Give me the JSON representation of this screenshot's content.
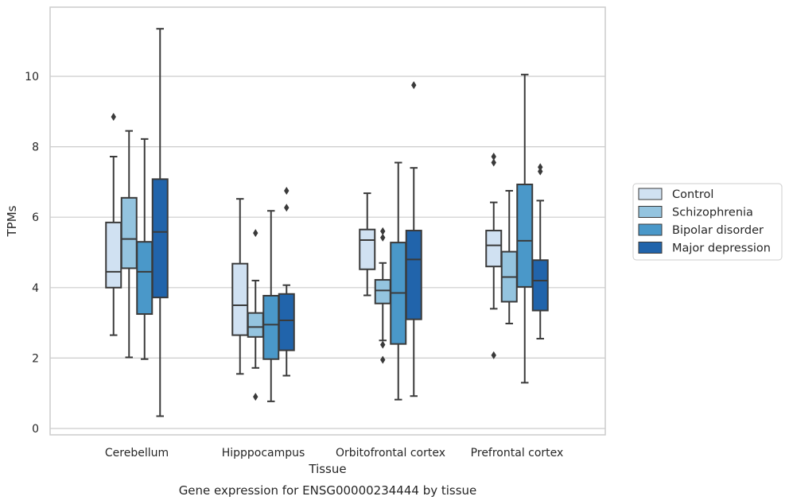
{
  "chart_data": {
    "type": "box",
    "categories": [
      "Cerebellum",
      "Hipppocampus",
      "Orbitofrontal cortex",
      "Prefrontal cortex"
    ],
    "xlabel": "Tissue",
    "ylabel": "TPMs",
    "caption": "Gene expression for ENSG00000234444 by tissue",
    "ylim": [
      -0.2,
      11.8
    ],
    "yticks": [
      0,
      2,
      4,
      6,
      8,
      10
    ],
    "grid": "horizontal",
    "legend_position": "outside right",
    "series": [
      {
        "name": "Control",
        "color": "#d0e1f2",
        "boxes": [
          {
            "whislo": 2.65,
            "q1": 4.0,
            "med": 4.45,
            "q3": 5.85,
            "whishi": 7.72,
            "fliers": [
              8.85
            ]
          },
          {
            "whislo": 1.55,
            "q1": 2.65,
            "med": 3.5,
            "q3": 4.68,
            "whishi": 6.52,
            "fliers": []
          },
          {
            "whislo": 3.78,
            "q1": 4.52,
            "med": 5.35,
            "q3": 5.65,
            "whishi": 6.68,
            "fliers": []
          },
          {
            "whislo": 3.4,
            "q1": 4.6,
            "med": 5.2,
            "q3": 5.62,
            "whishi": 6.42,
            "fliers": [
              7.72,
              7.55,
              2.08
            ]
          }
        ]
      },
      {
        "name": "Schizophrenia",
        "color": "#94c4df",
        "boxes": [
          {
            "whislo": 2.02,
            "q1": 4.55,
            "med": 5.38,
            "q3": 6.55,
            "whishi": 8.45,
            "fliers": []
          },
          {
            "whislo": 1.72,
            "q1": 2.6,
            "med": 2.88,
            "q3": 3.28,
            "whishi": 4.2,
            "fliers": [
              5.55,
              0.9
            ]
          },
          {
            "whislo": 2.5,
            "q1": 3.55,
            "med": 3.92,
            "q3": 4.22,
            "whishi": 4.7,
            "fliers": [
              5.6,
              5.42,
              2.38,
              1.95
            ]
          },
          {
            "whislo": 2.98,
            "q1": 3.6,
            "med": 4.3,
            "q3": 5.02,
            "whishi": 6.75,
            "fliers": []
          }
        ]
      },
      {
        "name": "Bipolar disorder",
        "color": "#4a98c9",
        "boxes": [
          {
            "whislo": 1.97,
            "q1": 3.25,
            "med": 4.45,
            "q3": 5.3,
            "whishi": 8.22,
            "fliers": []
          },
          {
            "whislo": 0.77,
            "q1": 1.97,
            "med": 2.95,
            "q3": 3.77,
            "whishi": 6.18,
            "fliers": []
          },
          {
            "whislo": 0.82,
            "q1": 2.4,
            "med": 3.85,
            "q3": 5.28,
            "whishi": 7.55,
            "fliers": []
          },
          {
            "whislo": 1.3,
            "q1": 4.02,
            "med": 5.33,
            "q3": 6.93,
            "whishi": 10.05,
            "fliers": []
          }
        ]
      },
      {
        "name": "Major depression",
        "color": "#2164ab",
        "boxes": [
          {
            "whislo": 0.35,
            "q1": 3.72,
            "med": 5.58,
            "q3": 7.08,
            "whishi": 11.35,
            "fliers": []
          },
          {
            "whislo": 1.5,
            "q1": 2.22,
            "med": 3.07,
            "q3": 3.82,
            "whishi": 4.07,
            "fliers": [
              6.75,
              6.27
            ]
          },
          {
            "whislo": 0.92,
            "q1": 3.1,
            "med": 4.8,
            "q3": 5.62,
            "whishi": 7.4,
            "fliers": [
              9.75
            ]
          },
          {
            "whislo": 2.55,
            "q1": 3.35,
            "med": 4.2,
            "q3": 4.78,
            "whishi": 6.47,
            "fliers": [
              7.42,
              7.3
            ]
          }
        ]
      }
    ]
  }
}
